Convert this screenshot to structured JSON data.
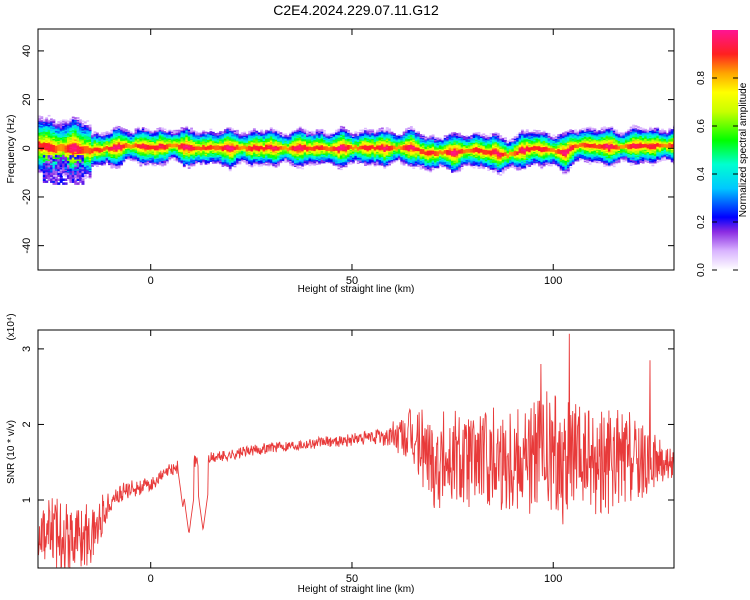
{
  "figure": {
    "title": "C2E4.2024.229.07.11.G12"
  },
  "chart_data": [
    {
      "type": "heatmap",
      "title": "C2E4.2024.229.07.11.G12",
      "xlabel": "Height of straight line (km)",
      "ylabel": "Frequency (Hz)",
      "xlim": [
        -28,
        130
      ],
      "ylim": [
        -50,
        49
      ],
      "xticks": [
        0,
        50,
        100
      ],
      "yticks": [
        40,
        20,
        0,
        -20,
        -40
      ],
      "grid": false,
      "colorbar": {
        "label": "Normalized spectral amplitude",
        "range": [
          0,
          1
        ],
        "ticks": [
          "0.0",
          "0.2",
          "0.4",
          "0.6",
          "0.8"
        ],
        "colormap": "rainbow (white → magenta → blue → cyan → green → yellow → red)"
      },
      "ridge_center_freq_hz": {
        "x": [
          -27,
          -25,
          -20,
          -15,
          -10,
          -5,
          0,
          5,
          10,
          20,
          30,
          40,
          50,
          60,
          65,
          68,
          70,
          75,
          80,
          85,
          88,
          90,
          95,
          100,
          103,
          105,
          110,
          115,
          120,
          125,
          130
        ],
        "y": [
          1,
          0,
          0,
          -1,
          0,
          1,
          0,
          1,
          0,
          0,
          0,
          0,
          0,
          0,
          0,
          -2,
          -2,
          -2,
          -1,
          -2,
          -3,
          -2,
          0,
          -1,
          -2,
          1,
          1,
          0,
          1,
          1,
          1
        ]
      }
    },
    {
      "type": "line",
      "title": "",
      "xlabel": "Height of straight line (km)",
      "ylabel": "SNR (10 * v/v)",
      "y_multiplier_label": "(x10⁴)",
      "xlim": [
        -28,
        130
      ],
      "ylim": [
        0.1,
        3.25
      ],
      "xticks": [
        0,
        50,
        100
      ],
      "yticks": [
        1,
        2,
        3
      ],
      "grid": false,
      "line_color": "#e83a3a",
      "series": [
        {
          "trend": {
            "x": [
              -28,
              -25,
              -20,
              -15,
              -12,
              -10,
              -5,
              0,
              5,
              10,
              15,
              20,
              30,
              40,
              50,
              60,
              65,
              70,
              80,
              90,
              100,
              105,
              110,
              120,
              125,
              130
            ],
            "y": [
              0.6,
              0.6,
              0.55,
              0.5,
              0.8,
              1.0,
              1.15,
              1.2,
              1.4,
              1.5,
              1.55,
              1.6,
              1.7,
              1.75,
              1.8,
              1.85,
              1.8,
              1.55,
              1.55,
              1.6,
              1.55,
              1.5,
              1.5,
              1.5,
              1.5,
              1.5
            ]
          },
          "amplitude": {
            "x": [
              -28,
              -20,
              -15,
              -12,
              -10,
              0,
              10,
              20,
              30,
              45,
              55,
              60,
              65,
              70,
              80,
              90,
              100,
              110,
              120,
              125,
              130
            ],
            "y": [
              0.45,
              0.5,
              0.45,
              0.3,
              0.15,
              0.1,
              0.1,
              0.08,
              0.08,
              0.08,
              0.1,
              0.2,
              0.45,
              0.7,
              0.75,
              0.8,
              0.9,
              0.8,
              0.7,
              0.4,
              0.2
            ]
          },
          "dips": [
            {
              "x": 8,
              "y": 0.9
            },
            {
              "x": 9.5,
              "y": 0.55
            },
            {
              "x": 13,
              "y": 0.6
            }
          ],
          "peaks": [
            {
              "x": 104,
              "y": 3.2
            },
            {
              "x": 97,
              "y": 2.8
            },
            {
              "x": 124,
              "y": 2.85
            }
          ]
        }
      ]
    }
  ]
}
